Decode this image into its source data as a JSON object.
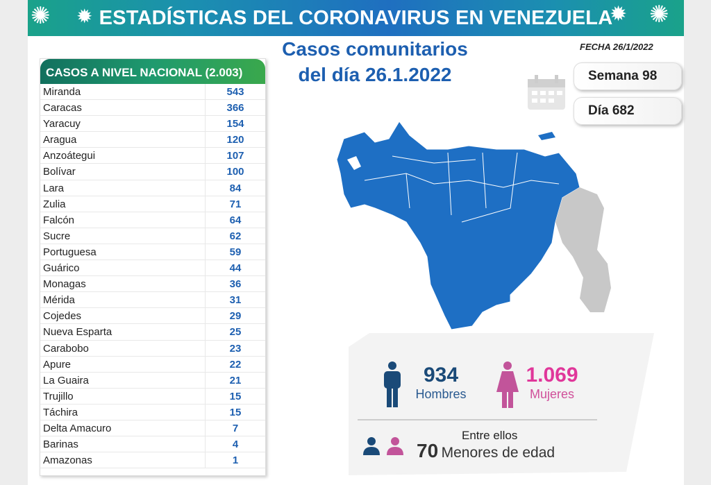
{
  "header": {
    "title": "ESTADÍSTICAS DEL CORONAVIRUS EN VENEZUELA",
    "date": "FECHA 26/1/2022",
    "subtitle_line1": "Casos comunitarios",
    "subtitle_line2": "del día 26.1.2022"
  },
  "table": {
    "header": "CASOS A NIVEL NACIONAL  (2.003)",
    "rows": [
      {
        "name": "Miranda",
        "value": "543"
      },
      {
        "name": "Caracas",
        "value": "366"
      },
      {
        "name": "Yaracuy",
        "value": "154"
      },
      {
        "name": "Aragua",
        "value": "120"
      },
      {
        "name": "Anzoátegui",
        "value": "107"
      },
      {
        "name": "Bolívar",
        "value": "100"
      },
      {
        "name": "Lara",
        "value": "84"
      },
      {
        "name": "Zulia",
        "value": "71"
      },
      {
        "name": "Falcón",
        "value": "64"
      },
      {
        "name": "Sucre",
        "value": "62"
      },
      {
        "name": "Portuguesa",
        "value": "59"
      },
      {
        "name": "Guárico",
        "value": "44"
      },
      {
        "name": "Monagas",
        "value": "36"
      },
      {
        "name": "Mérida",
        "value": "31"
      },
      {
        "name": "Cojedes",
        "value": "29"
      },
      {
        "name": "Nueva Esparta",
        "value": "25"
      },
      {
        "name": "Carabobo",
        "value": "23"
      },
      {
        "name": "Apure",
        "value": "22"
      },
      {
        "name": "La Guaira",
        "value": "21"
      },
      {
        "name": "Trujillo",
        "value": "15"
      },
      {
        "name": "Táchira",
        "value": "15"
      },
      {
        "name": "Delta Amacuro",
        "value": "7"
      },
      {
        "name": "Barinas",
        "value": "4"
      },
      {
        "name": "Amazonas",
        "value": "1"
      }
    ]
  },
  "week": "Semana 98",
  "day": "Día 682",
  "stats": {
    "men_count": "934",
    "men_label": "Hombres",
    "women_count": "1.069",
    "women_label": "Mujeres",
    "minors_intro": "Entre ellos",
    "minors_count": "70",
    "minors_label": "Menores de edad"
  },
  "colors": {
    "map_blue": "#1e6fc4",
    "men": "#1a4a78",
    "women": "#c2549a",
    "women_text": "#e0379a",
    "title_blue": "#1d5fb0"
  }
}
